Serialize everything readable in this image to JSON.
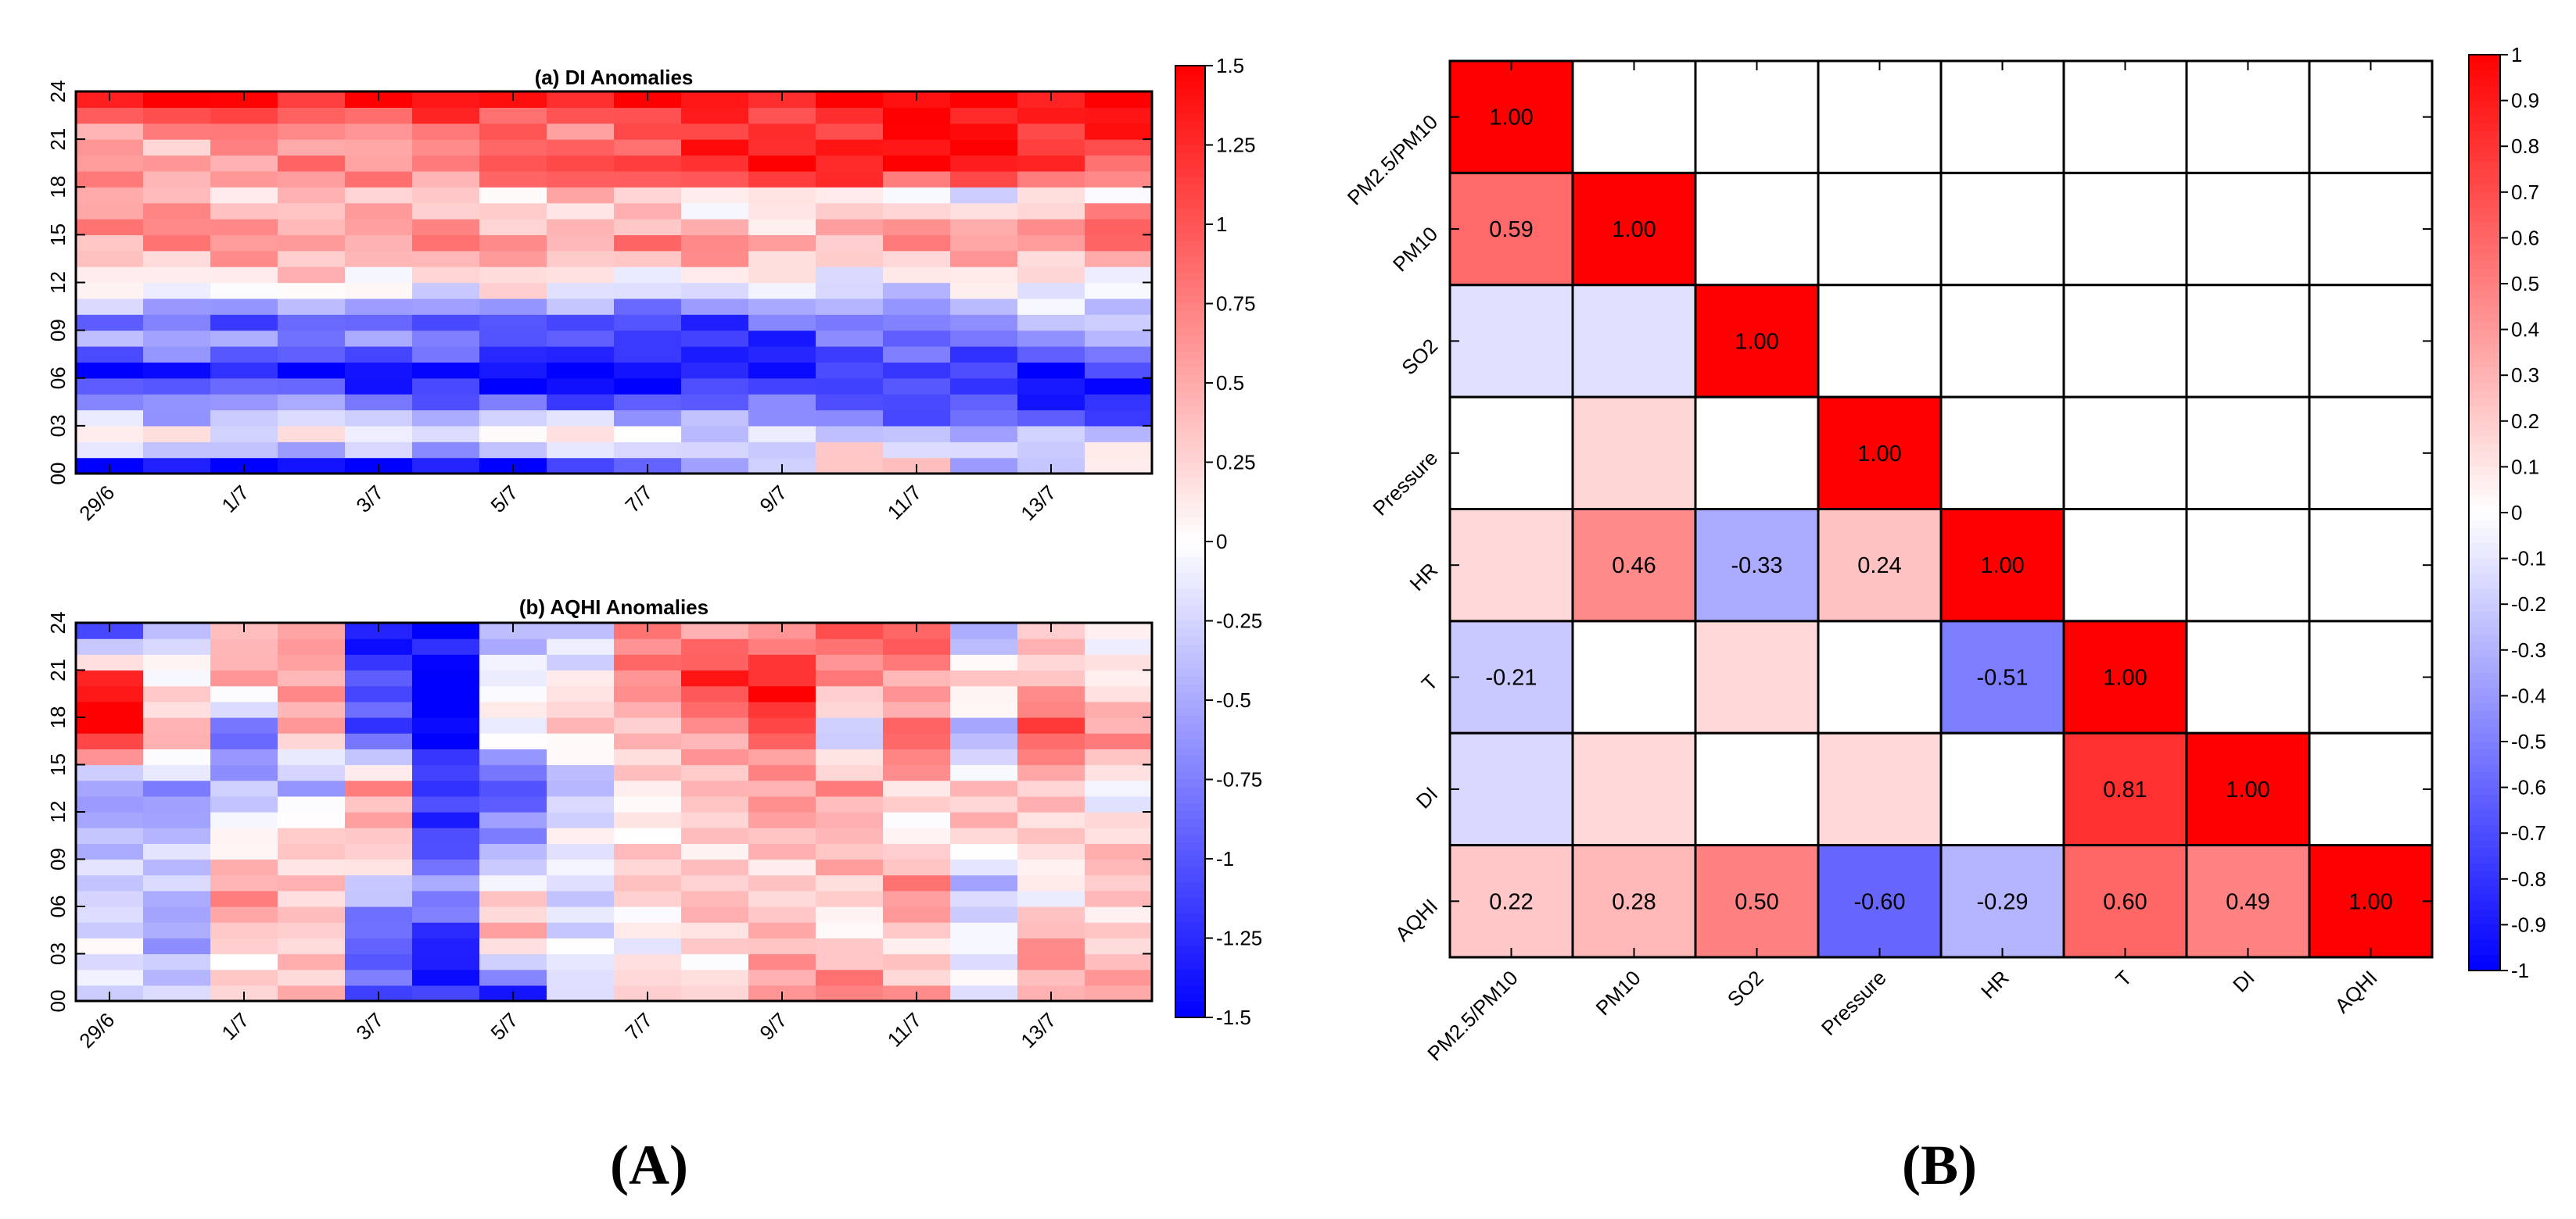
{
  "panel_labels": {
    "left": "(A)",
    "right": "(B)"
  },
  "colors": {
    "neg_extreme": "#0000ff",
    "zero": "#ffffff",
    "pos_extreme": "#ff0000",
    "frame": "#000000"
  },
  "chart_data": [
    {
      "id": "di",
      "type": "heatmap",
      "title": "(a)  DI Anomalies",
      "xlabel": "",
      "ylabel": "",
      "x_categories": [
        "29/6",
        "30/6",
        "1/7",
        "2/7",
        "3/7",
        "4/7",
        "5/7",
        "6/7",
        "7/7",
        "8/7",
        "9/7",
        "10/7",
        "11/7",
        "12/7",
        "13/7",
        "14/7"
      ],
      "x_tick_labels": [
        "29/6",
        "1/7",
        "3/7",
        "5/7",
        "7/7",
        "9/7",
        "11/7",
        "13/7"
      ],
      "y_tick_labels": [
        "00",
        "03",
        "06",
        "09",
        "12",
        "15",
        "18",
        "21",
        "24"
      ],
      "y_range": [
        0,
        24
      ],
      "clim": [
        -1.5,
        1.5
      ],
      "colorbar_ticks": [
        "1.5",
        "1.25",
        "1",
        "0.75",
        "0.5",
        "0.25",
        "0",
        "-0.25",
        "-0.5",
        "-0.75",
        "-1",
        "-1.25",
        "-1.5"
      ],
      "profiles": [
        [
          -1.5,
          -1.5,
          -1.4,
          -1.4,
          -1.5,
          -1.5,
          -1.3,
          -1.2,
          -1.0,
          -0.5,
          -0.2,
          0.3,
          0.2,
          -0.3,
          -0.5,
          0.1
        ],
        [
          0.3,
          0.3,
          0.2,
          0.1,
          0.0,
          0.0,
          0.2,
          0.3,
          0.1,
          0.0,
          -0.2,
          -0.1,
          -0.1,
          -0.2,
          -0.2,
          -0.1
        ],
        [
          -0.4,
          -0.4,
          -0.4,
          -0.3,
          -0.3,
          -0.4,
          -0.3,
          -0.4,
          -0.4,
          -0.5,
          -0.7,
          -0.8,
          -0.9,
          -1.0,
          -1.1,
          -1.0
        ],
        [
          -0.7,
          -0.7,
          -0.8,
          -0.8,
          -1.0,
          -1.2,
          -1.5,
          -1.4,
          -1.3,
          -1.2,
          -1.0,
          -0.9,
          -1.1,
          -1.2,
          -1.4,
          -1.3
        ],
        [
          -1.5,
          -1.5,
          -1.5,
          -1.5,
          -1.5,
          -1.5,
          -1.5,
          -1.5,
          -1.5,
          -1.4,
          -1.3,
          -1.1,
          -1.2,
          -1.2,
          -1.3,
          -1.2
        ],
        [
          -0.4,
          -0.4,
          -0.4,
          -0.5,
          -0.6,
          -0.7,
          -0.8,
          -1.0,
          -1.2,
          -1.2,
          -1.2,
          -1.0,
          -0.9,
          -0.8,
          -0.7,
          -0.6
        ],
        [
          -1.0,
          -1.0,
          -1.0,
          -1.0,
          -1.1,
          -1.0,
          -1.0,
          -1.1,
          -1.2,
          -1.0,
          -0.8,
          -0.8,
          -0.7,
          -0.5,
          -0.4,
          -0.4
        ],
        [
          0.0,
          0.0,
          -0.1,
          -0.1,
          -0.1,
          -0.1,
          0.0,
          -0.2,
          -0.2,
          -0.2,
          -0.3,
          -0.3,
          -0.3,
          -0.2,
          -0.2,
          -0.1
        ],
        [
          0.2,
          0.2,
          0.2,
          0.3,
          0.3,
          0.2,
          0.2,
          0.2,
          0.1,
          0.1,
          0.1,
          0.1,
          0.1,
          0.2,
          0.2,
          0.2
        ],
        [
          0.6,
          0.6,
          0.6,
          0.6,
          0.6,
          0.7,
          0.7,
          0.7,
          0.8,
          0.8,
          0.6,
          0.5,
          0.5,
          0.6,
          0.7,
          0.8
        ],
        [
          0.8,
          0.7,
          0.6,
          0.6,
          0.5,
          0.5,
          0.4,
          0.3,
          0.2,
          0.2,
          0.3,
          0.4,
          0.6,
          0.6,
          0.7,
          0.9
        ],
        [
          0.3,
          0.3,
          0.3,
          0.3,
          0.2,
          0.2,
          0.2,
          0.2,
          0.2,
          0.1,
          0.0,
          -0.1,
          -0.2,
          -0.2,
          -0.2,
          0.0
        ],
        [
          0.7,
          0.7,
          0.7,
          0.7,
          0.8,
          0.9,
          1.0,
          1.1,
          1.3,
          1.4,
          1.5,
          1.5,
          1.5,
          1.3,
          1.1,
          0.9
        ],
        [
          0.5,
          0.5,
          0.5,
          0.5,
          0.6,
          0.7,
          0.8,
          0.9,
          1.1,
          1.2,
          1.3,
          1.4,
          1.5,
          1.4,
          1.2,
          1.2
        ],
        [
          0.8,
          0.8,
          0.8,
          0.8,
          0.8,
          0.8,
          0.8,
          0.8,
          0.9,
          1.0,
          1.1,
          1.2,
          1.3,
          1.3,
          1.3,
          1.4
        ],
        [
          1.4,
          1.4,
          1.4,
          1.4,
          1.4,
          1.4,
          1.4,
          1.4,
          1.4,
          1.4,
          1.4,
          1.4,
          1.4,
          1.5,
          1.5,
          1.5
        ]
      ]
    },
    {
      "id": "aqhi",
      "type": "heatmap",
      "title": "(b)  AQHI Anomalies",
      "xlabel": "",
      "ylabel": "",
      "x_categories": [
        "29/6",
        "30/6",
        "1/7",
        "2/7",
        "3/7",
        "4/7",
        "5/7",
        "6/7",
        "7/7",
        "8/7",
        "9/7",
        "10/7",
        "11/7",
        "12/7",
        "13/7",
        "14/7"
      ],
      "x_tick_labels": [
        "29/6",
        "1/7",
        "3/7",
        "5/7",
        "7/7",
        "9/7",
        "11/7",
        "13/7"
      ],
      "y_tick_labels": [
        "00",
        "03",
        "06",
        "09",
        "12",
        "15",
        "18",
        "21",
        "24"
      ],
      "y_range": [
        0,
        24
      ],
      "clim": [
        -1.5,
        1.5
      ],
      "profiles": [
        [
          -0.3,
          -0.4,
          0.4,
          0.5,
          -1.1,
          -1.3,
          -1.1,
          -0.3,
          0.2,
          0.3,
          0.7,
          0.7,
          0.5,
          0.1,
          0.3,
          0.5
        ],
        [
          -0.2,
          -0.4,
          0.2,
          0.1,
          -0.9,
          -1.2,
          0.3,
          -0.2,
          0.1,
          0.2,
          0.3,
          0.2,
          0.3,
          -0.2,
          0.6,
          0.4
        ],
        [
          -0.1,
          -0.5,
          0.6,
          0.5,
          -0.3,
          -0.7,
          0.2,
          -0.1,
          0.2,
          0.3,
          0.4,
          0.3,
          0.6,
          -0.4,
          0.1,
          0.2
        ],
        [
          -0.6,
          -0.3,
          0.2,
          0.2,
          0.3,
          -1.0,
          -0.6,
          -0.2,
          0.2,
          0.4,
          0.3,
          0.3,
          0.2,
          0.3,
          0.1,
          0.4
        ],
        [
          -0.5,
          -0.6,
          -0.6,
          -0.5,
          0.8,
          -1.2,
          -1.2,
          -0.3,
          0.2,
          0.2,
          0.6,
          0.8,
          0.2,
          0.2,
          0.5,
          -0.1
        ],
        [
          1.4,
          0.4,
          -0.8,
          0.5,
          -1.3,
          -1.5,
          0.2,
          0.2,
          0.2,
          0.7,
          1.0,
          -0.6,
          1.0,
          -0.4,
          1.0,
          0.6
        ],
        [
          1.4,
          0.3,
          0.4,
          0.4,
          -0.8,
          -1.5,
          -0.2,
          0.1,
          0.9,
          1.2,
          1.3,
          0.8,
          0.5,
          0.2,
          0.4,
          0.3
        ],
        [
          -1.0,
          -0.5,
          0.3,
          0.8,
          -1.5,
          -1.5,
          -0.4,
          -0.2,
          0.6,
          0.5,
          0.8,
          0.9,
          0.9,
          -0.5,
          0.5,
          -0.2
        ]
      ]
    },
    {
      "id": "corr",
      "type": "heatmap",
      "title": "",
      "xlabel": "",
      "ylabel": "",
      "variables": [
        "PM2.5/PM10",
        "PM10",
        "SO2",
        "Pressure",
        "HR",
        "T",
        "DI",
        "AQHI"
      ],
      "clim": [
        -1,
        1
      ],
      "colorbar_ticks": [
        "1",
        "0.9",
        "0.8",
        "0.7",
        "0.6",
        "0.5",
        "0.4",
        "0.3",
        "0.2",
        "0.1",
        "0",
        "-0.1",
        "-0.2",
        "-0.3",
        "-0.4",
        "-0.5",
        "-0.6",
        "-0.7",
        "-0.8",
        "-0.9",
        "-1"
      ],
      "matrix": [
        [
          1.0,
          null,
          null,
          null,
          null,
          null,
          null,
          null
        ],
        [
          0.59,
          1.0,
          null,
          null,
          null,
          null,
          null,
          null
        ],
        [
          -0.12,
          -0.12,
          1.0,
          null,
          null,
          null,
          null,
          null
        ],
        [
          0.0,
          0.16,
          0.0,
          1.0,
          null,
          null,
          null,
          null
        ],
        [
          0.15,
          0.46,
          -0.33,
          0.24,
          1.0,
          null,
          null,
          null
        ],
        [
          -0.21,
          0.0,
          0.15,
          0.0,
          -0.51,
          1.0,
          null,
          null
        ],
        [
          -0.15,
          0.15,
          0.0,
          0.15,
          0.0,
          0.81,
          1.0,
          null
        ],
        [
          0.22,
          0.28,
          0.5,
          -0.6,
          -0.29,
          0.6,
          0.49,
          1.0
        ]
      ],
      "labels": [
        [
          "1.00",
          "",
          "",
          "",
          "",
          "",
          "",
          ""
        ],
        [
          "0.59",
          "1.00",
          "",
          "",
          "",
          "",
          "",
          ""
        ],
        [
          "",
          "",
          "1.00",
          "",
          "",
          "",
          "",
          ""
        ],
        [
          "",
          "",
          "",
          "1.00",
          "",
          "",
          "",
          ""
        ],
        [
          "",
          "0.46",
          "-0.33",
          "0.24",
          "1.00",
          "",
          "",
          ""
        ],
        [
          "-0.21",
          "",
          "",
          "",
          "-0.51",
          "1.00",
          "",
          ""
        ],
        [
          "",
          "",
          "",
          "",
          "",
          "0.81",
          "1.00",
          ""
        ],
        [
          "0.22",
          "0.28",
          "0.50",
          "-0.60",
          "-0.29",
          "0.60",
          "0.49",
          "1.00"
        ]
      ]
    }
  ]
}
